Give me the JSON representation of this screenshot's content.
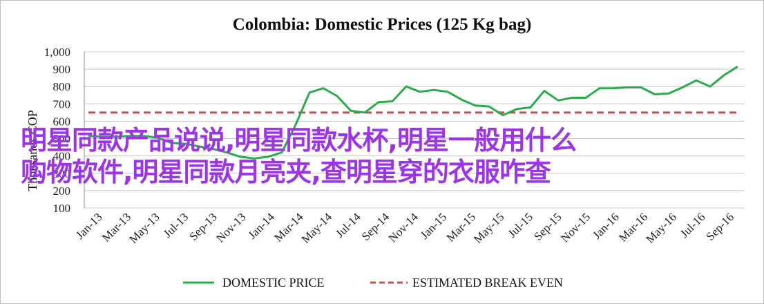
{
  "chart_data": {
    "type": "line",
    "title": "Colombia: Domestic Prices (125 Kg bag)",
    "ylabel": "Thousands COP",
    "ylim": [
      100,
      1000
    ],
    "yticks": [
      "100",
      "200",
      "300",
      "400",
      "500",
      "600",
      "700",
      "800",
      "900",
      "1,000"
    ],
    "ytick_values": [
      100,
      200,
      300,
      400,
      500,
      600,
      700,
      800,
      900,
      1000
    ],
    "xtick_labels": [
      "Jan-13",
      "Mar-13",
      "May-13",
      "Jul-13",
      "Sep-13",
      "Nov-13",
      "Jan-14",
      "Mar-14",
      "May-14",
      "Jul-14",
      "Sep-14",
      "Nov-14",
      "Jan-15",
      "Mar-15",
      "May-15",
      "Jul-15",
      "Sep-15",
      "Nov-15",
      "Jan-16",
      "Mar-16",
      "May-16",
      "Jul-16",
      "Sep-16"
    ],
    "grid": "horizontal",
    "legend_position": "bottom",
    "series": [
      {
        "name": "DOMESTIC PRICE",
        "color": "#2cab4c",
        "style": "solid",
        "values": [
          515,
          510,
          510,
          515,
          515,
          505,
          475,
          470,
          455,
          440,
          420,
          395,
          385,
          395,
          420,
          580,
          765,
          790,
          745,
          660,
          650,
          710,
          715,
          800,
          770,
          780,
          770,
          725,
          690,
          685,
          635,
          670,
          680,
          775,
          720,
          735,
          735,
          790,
          790,
          795,
          795,
          755,
          760,
          795,
          835,
          800,
          865,
          915
        ]
      },
      {
        "name": "ESTIMATED BREAK EVEN",
        "color": "#c0504d",
        "style": "dashed",
        "values": [
          650,
          650
        ]
      }
    ]
  },
  "overlay_text": {
    "line1": "明星同款产品说说,明星同款水杯,明星一般用什么",
    "line2": "购物软件,明星同款月亮夹,查明星穿的衣服咋查"
  }
}
